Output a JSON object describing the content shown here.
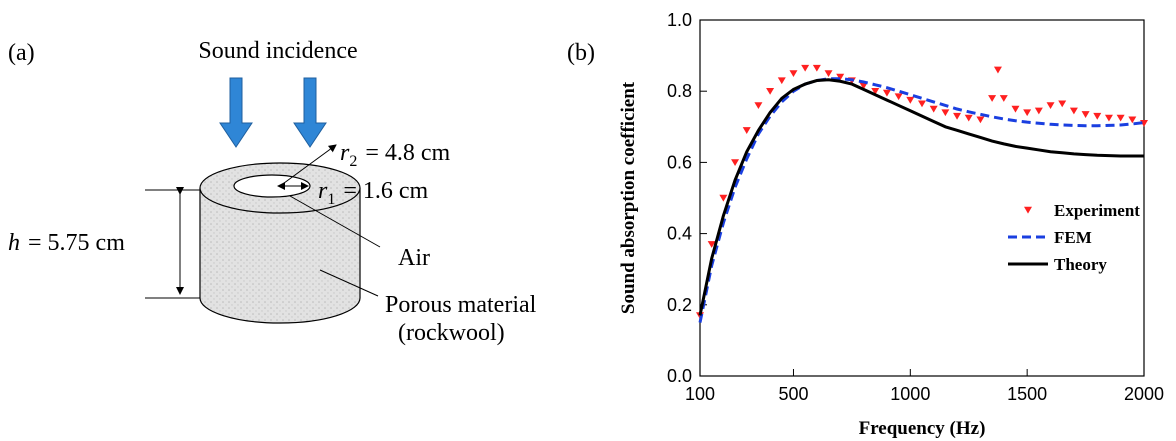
{
  "diagram": {
    "panel_label": "(a)",
    "incidence_label": "Sound incidence",
    "outer_radius": {
      "symbol": "r",
      "subscript": "2",
      "text": "= 4.8 cm"
    },
    "inner_radius": {
      "symbol": "r",
      "subscript": "1",
      "text": "= 1.6 cm"
    },
    "height": {
      "symbol": "h",
      "text": "= 5.75 cm"
    },
    "air_label": "Air",
    "material_label": [
      "Porous material",
      "(rockwool)"
    ]
  },
  "chart_data": {
    "type": "line",
    "panel_label": "(b)",
    "x_label": "Frequency (Hz)",
    "y_label": "Sound absorption coefficient",
    "xlim": [
      100,
      2000
    ],
    "ylim": [
      0,
      1
    ],
    "xticks": [
      100,
      500,
      1000,
      1500,
      2000
    ],
    "yticks": [
      {
        "value": 0,
        "label": "0.0"
      },
      0.2,
      0.4,
      0.6,
      0.8,
      {
        "value": 1,
        "label": "1.0"
      }
    ],
    "legend": "right",
    "series": [
      {
        "name": "Experiment",
        "color": "#ff2020",
        "marker": "triangle-down",
        "x": [
          100,
          150,
          200,
          250,
          300,
          350,
          400,
          450,
          500,
          550,
          600,
          650,
          700,
          750,
          800,
          850,
          900,
          950,
          1000,
          1050,
          1100,
          1150,
          1200,
          1250,
          1300,
          1350,
          1375,
          1400,
          1450,
          1500,
          1550,
          1600,
          1650,
          1700,
          1750,
          1800,
          1850,
          1900,
          1950,
          2000
        ],
        "values": [
          0.17,
          0.37,
          0.5,
          0.6,
          0.69,
          0.76,
          0.8,
          0.83,
          0.85,
          0.865,
          0.865,
          0.85,
          0.84,
          0.83,
          0.815,
          0.8,
          0.795,
          0.785,
          0.775,
          0.765,
          0.75,
          0.74,
          0.73,
          0.725,
          0.72,
          0.78,
          0.86,
          0.78,
          0.75,
          0.74,
          0.745,
          0.76,
          0.765,
          0.745,
          0.735,
          0.73,
          0.725,
          0.725,
          0.72,
          0.71
        ]
      },
      {
        "name": "FEM",
        "color": "#1a3fe0",
        "dash": true,
        "x": [
          100,
          150,
          200,
          250,
          300,
          350,
          400,
          450,
          500,
          550,
          600,
          650,
          700,
          750,
          800,
          850,
          900,
          950,
          1000,
          1050,
          1100,
          1150,
          1200,
          1250,
          1300,
          1350,
          1400,
          1450,
          1500,
          1550,
          1600,
          1650,
          1700,
          1750,
          1800,
          1850,
          1900,
          1950,
          2000
        ],
        "values": [
          0.15,
          0.31,
          0.43,
          0.53,
          0.61,
          0.68,
          0.73,
          0.77,
          0.8,
          0.82,
          0.83,
          0.835,
          0.835,
          0.832,
          0.826,
          0.818,
          0.81,
          0.8,
          0.79,
          0.78,
          0.77,
          0.76,
          0.75,
          0.742,
          0.735,
          0.728,
          0.722,
          0.717,
          0.713,
          0.71,
          0.707,
          0.705,
          0.704,
          0.703,
          0.703,
          0.704,
          0.705,
          0.708,
          0.712
        ]
      },
      {
        "name": "Theory",
        "color": "#000000",
        "dash": false,
        "x": [
          100,
          150,
          200,
          250,
          300,
          350,
          400,
          450,
          500,
          550,
          600,
          650,
          700,
          750,
          800,
          850,
          900,
          950,
          1000,
          1050,
          1100,
          1150,
          1200,
          1250,
          1300,
          1350,
          1400,
          1450,
          1500,
          1550,
          1600,
          1650,
          1700,
          1750,
          1800,
          1850,
          1900,
          1950,
          2000
        ],
        "values": [
          0.17,
          0.33,
          0.45,
          0.55,
          0.63,
          0.69,
          0.74,
          0.78,
          0.805,
          0.82,
          0.83,
          0.832,
          0.828,
          0.82,
          0.805,
          0.79,
          0.775,
          0.76,
          0.745,
          0.73,
          0.715,
          0.7,
          0.69,
          0.68,
          0.67,
          0.66,
          0.652,
          0.645,
          0.64,
          0.635,
          0.63,
          0.627,
          0.624,
          0.622,
          0.62,
          0.619,
          0.618,
          0.618,
          0.618
        ]
      }
    ]
  }
}
